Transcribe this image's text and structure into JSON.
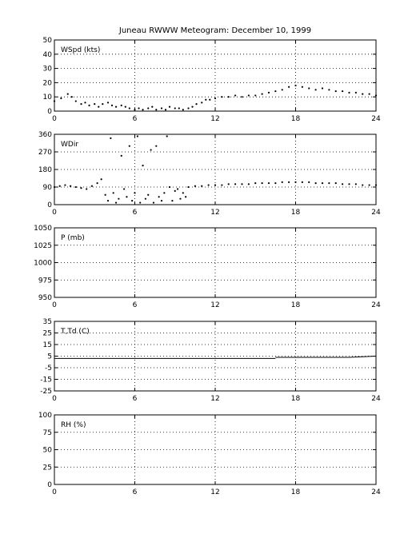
{
  "title": "Juneau RWWW Meteogram:  December 10, 1999",
  "chart_data": [
    {
      "type": "scatter",
      "label": "WSpd (kts)",
      "xlim": [
        0,
        24
      ],
      "ylim": [
        0,
        50
      ],
      "xticks": [
        "0",
        "6",
        "12",
        "18",
        "24"
      ],
      "yticks": [
        "0",
        "10",
        "20",
        "30",
        "40",
        "50"
      ],
      "grid": true,
      "series": [
        {
          "x": [
            0,
            0.5,
            1,
            1.3,
            1.6,
            2,
            2.3,
            2.6,
            3,
            3.3,
            3.6,
            4,
            4.3,
            4.6,
            5,
            5.3,
            5.6,
            6,
            6.3,
            6.6,
            7,
            7.3,
            7.6,
            8,
            8.3,
            8.6,
            9,
            9.3,
            9.6,
            10,
            10.3,
            10.6,
            11,
            11.3,
            11.6,
            12,
            12.5,
            13,
            13.5,
            14,
            14.5,
            15,
            15.5,
            16,
            16.5,
            17,
            17.5,
            18,
            18.5,
            19,
            19.5,
            20,
            20.5,
            21,
            21.5,
            22,
            22.5,
            23,
            23.5,
            24
          ],
          "y": [
            7,
            9,
            12,
            10,
            7,
            5,
            6,
            4,
            5,
            3,
            5,
            6,
            4,
            3,
            4,
            3,
            2,
            1,
            2,
            1,
            2,
            3,
            1,
            2,
            1,
            3,
            2,
            2,
            1,
            2,
            3,
            5,
            6,
            8,
            8,
            9,
            10,
            10,
            11,
            10,
            11,
            11,
            12,
            13,
            14,
            15,
            17,
            18,
            17,
            16,
            15,
            16,
            15,
            14,
            14,
            13,
            13,
            12,
            12,
            11
          ]
        }
      ]
    },
    {
      "type": "scatter",
      "label": "WDir",
      "xlim": [
        0,
        24
      ],
      "ylim": [
        0,
        360
      ],
      "xticks": [
        "0",
        "6",
        "12",
        "18",
        "24"
      ],
      "yticks": [
        "0",
        "90",
        "180",
        "270",
        "360"
      ],
      "grid": true,
      "series": [
        {
          "x": [
            0,
            0.4,
            0.8,
            1.2,
            1.6,
            2,
            2.4,
            2.8,
            3.2,
            3.5,
            3.8,
            4,
            4.2,
            4.4,
            4.6,
            4.8,
            5,
            5.2,
            5.4,
            5.6,
            5.8,
            6,
            6.2,
            6.4,
            6.6,
            6.8,
            7,
            7.2,
            7.4,
            7.6,
            7.8,
            8,
            8.2,
            8.4,
            8.6,
            8.8,
            9,
            9.2,
            9.4,
            9.6,
            9.8,
            10,
            10.5,
            11,
            11.5,
            12,
            12.5,
            13,
            13.5,
            14,
            14.5,
            15,
            15.5,
            16,
            16.5,
            17,
            17.5,
            18,
            18.5,
            19,
            19.5,
            20,
            20.5,
            21,
            21.5,
            22,
            22.5,
            23,
            23.5,
            24
          ],
          "y": [
            90,
            95,
            100,
            95,
            90,
            85,
            80,
            95,
            110,
            130,
            50,
            20,
            340,
            60,
            10,
            30,
            250,
            80,
            40,
            300,
            20,
            60,
            350,
            10,
            200,
            30,
            50,
            280,
            10,
            300,
            40,
            20,
            60,
            350,
            90,
            20,
            70,
            80,
            30,
            60,
            40,
            90,
            95,
            95,
            100,
            100,
            100,
            105,
            105,
            105,
            105,
            110,
            110,
            110,
            110,
            115,
            115,
            115,
            115,
            115,
            110,
            110,
            110,
            110,
            105,
            105,
            105,
            100,
            100,
            100
          ]
        }
      ]
    },
    {
      "type": "line",
      "label": "P (mb)",
      "xlim": [
        0,
        24
      ],
      "ylim": [
        950,
        1050
      ],
      "xticks": [
        "0",
        "6",
        "12",
        "18",
        "24"
      ],
      "yticks": [
        "950",
        "975",
        "1000",
        "1025",
        "1050"
      ],
      "grid": true,
      "series": []
    },
    {
      "type": "line",
      "label": "T,Td (C)",
      "xlim": [
        0,
        24
      ],
      "ylim": [
        -25,
        35
      ],
      "xticks": [
        "0",
        "6",
        "12",
        "18",
        "24"
      ],
      "yticks": [
        "-25",
        "-15",
        "-5",
        "5",
        "15",
        "25",
        "35"
      ],
      "grid": true,
      "series": [
        {
          "x": [
            0,
            6,
            12,
            16.5
          ],
          "y": [
            3,
            3,
            3,
            3
          ]
        },
        {
          "x": [
            16.5,
            18,
            20,
            22,
            24
          ],
          "y": [
            4,
            4,
            4,
            4,
            5
          ]
        }
      ]
    },
    {
      "type": "line",
      "label": "RH (%)",
      "xlim": [
        0,
        24
      ],
      "ylim": [
        0,
        100
      ],
      "xticks": [
        "0",
        "6",
        "12",
        "18",
        "24"
      ],
      "yticks": [
        "0",
        "25",
        "50",
        "75",
        "100"
      ],
      "grid": true,
      "series": []
    }
  ]
}
